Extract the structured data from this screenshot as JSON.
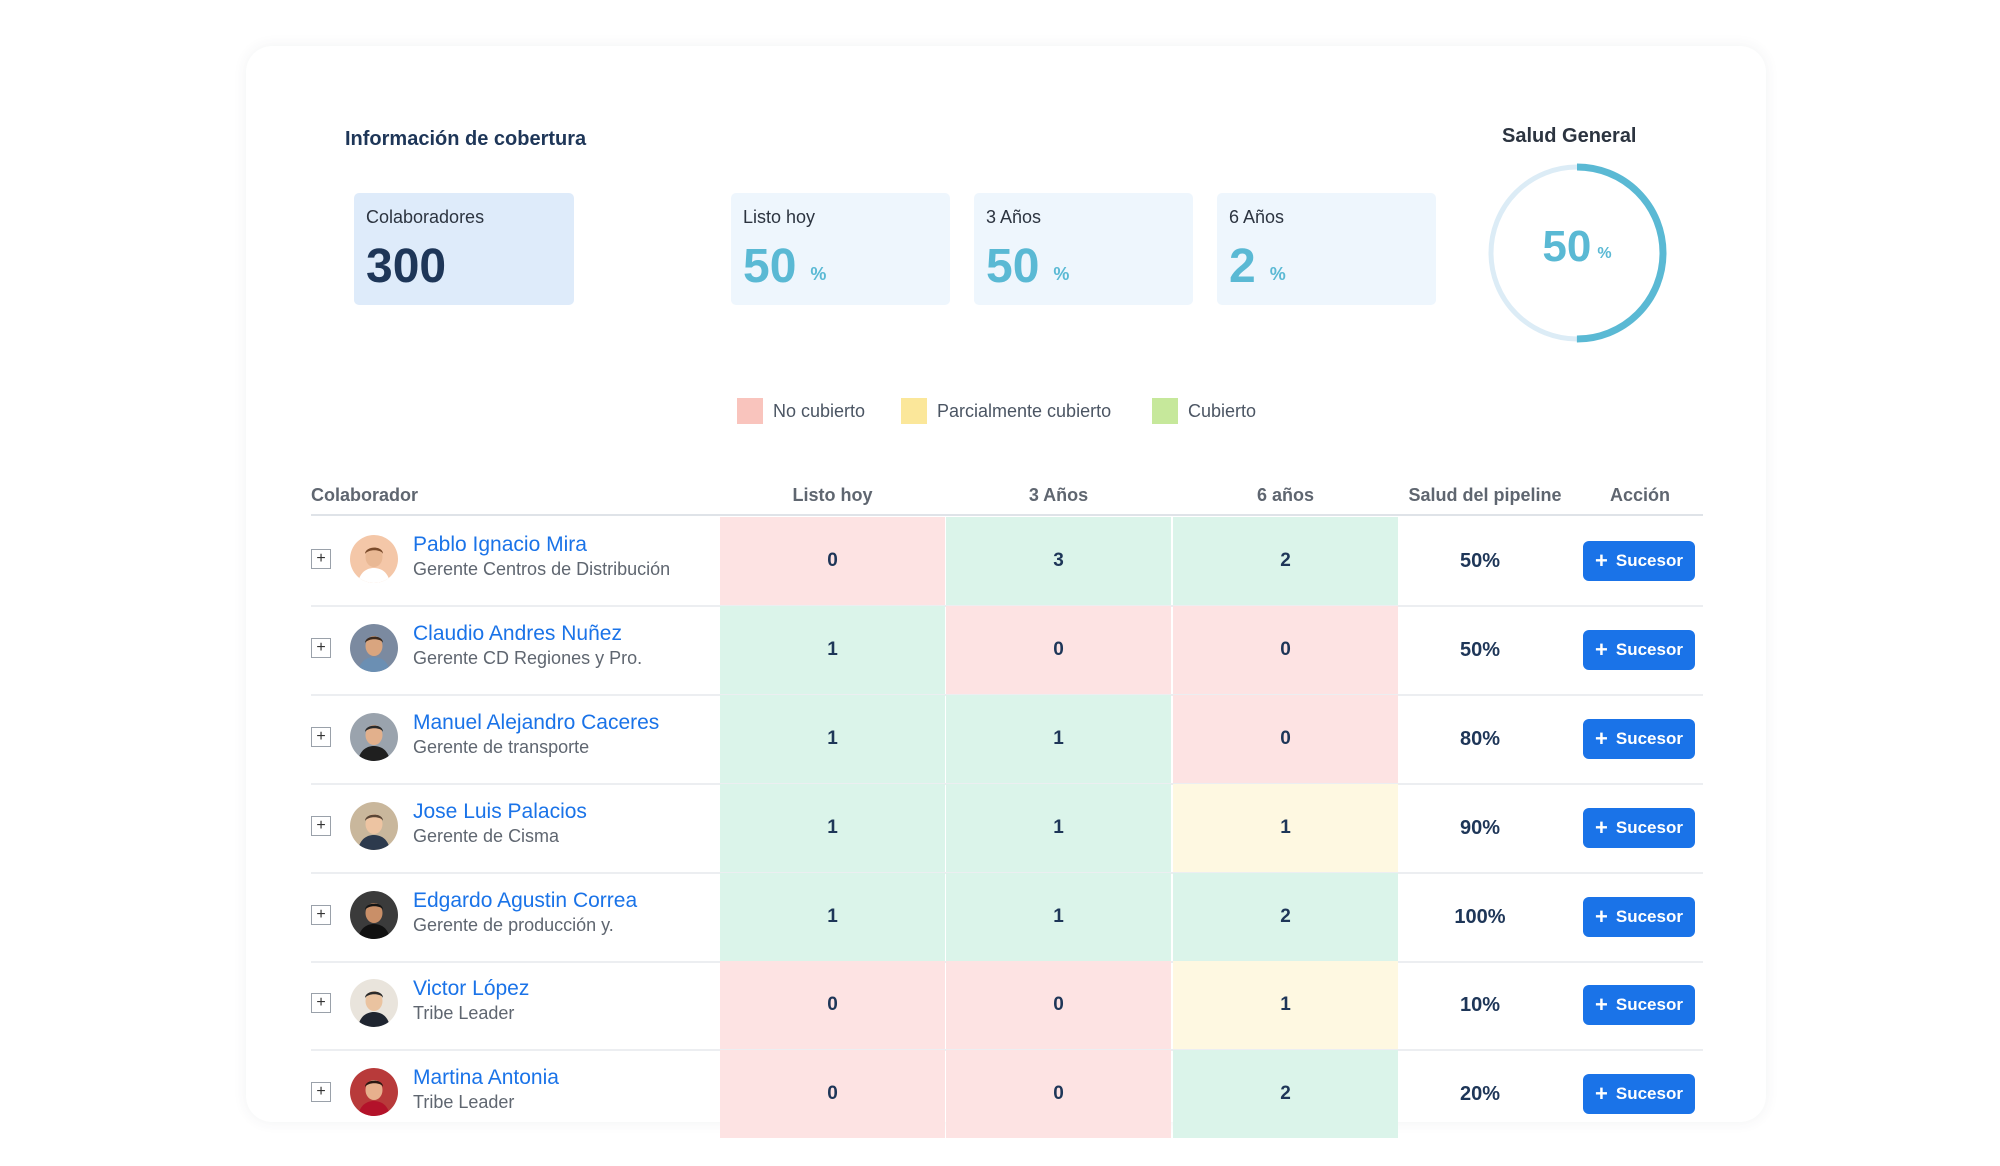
{
  "section_title": "Información de cobertura",
  "kpis": [
    {
      "label": "Colaboradores",
      "value": "300",
      "unit": ""
    },
    {
      "label": "Listo hoy",
      "value": "50",
      "unit": "%"
    },
    {
      "label": "3 Años",
      "value": "50",
      "unit": "%"
    },
    {
      "label": "6 Años",
      "value": "2",
      "unit": "%"
    }
  ],
  "health": {
    "title": "Salud General",
    "value": "50",
    "unit": "%",
    "fraction": 0.5
  },
  "legend": [
    {
      "label": "No cubierto",
      "color": "#f9c4bd"
    },
    {
      "label": "Parcialmente cubierto",
      "color": "#fbe79a"
    },
    {
      "label": "Cubierto",
      "color": "#c6e89b"
    }
  ],
  "table": {
    "headers": {
      "collaborator": "Colaborador",
      "today": "Listo hoy",
      "three": "3 Años",
      "six": "6 años",
      "health": "Salud del pipeline",
      "action": "Acción"
    },
    "action_label": "Sucesor",
    "rows": [
      {
        "name": "Pablo Ignacio Mira",
        "role": "Gerente Centros de Distribución",
        "today": "0",
        "three": "3",
        "six": "2",
        "health": "50%"
      },
      {
        "name": "Claudio Andres Nuñez",
        "role": "Gerente CD Regiones y Pro.",
        "today": "1",
        "three": "0",
        "six": "0",
        "health": "50%"
      },
      {
        "name": "Manuel Alejandro Caceres",
        "role": "Gerente de transporte",
        "today": "1",
        "three": "1",
        "six": "0",
        "health": "80%"
      },
      {
        "name": "Jose Luis Palacios",
        "role": "Gerente de Cisma",
        "today": "1",
        "three": "1",
        "six": "1",
        "health": "90%"
      },
      {
        "name": "Edgardo Agustin Correa",
        "role": "Gerente de producción y.",
        "today": "1",
        "three": "1",
        "six": "2",
        "health": "100%"
      },
      {
        "name": "Victor López",
        "role": "Tribe Leader",
        "today": "0",
        "three": "0",
        "six": "1",
        "health": "10%"
      },
      {
        "name": "Martina Antonia",
        "role": "Tribe Leader",
        "today": "0",
        "three": "0",
        "six": "2",
        "health": "20%"
      }
    ]
  }
}
